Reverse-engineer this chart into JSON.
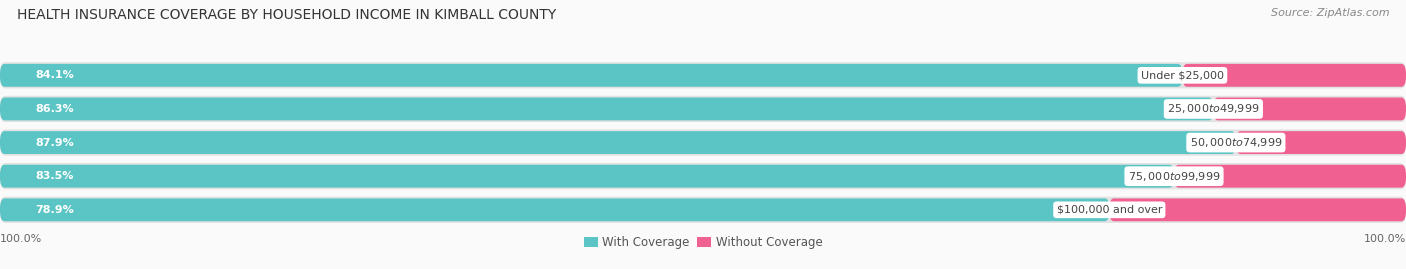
{
  "title": "HEALTH INSURANCE COVERAGE BY HOUSEHOLD INCOME IN KIMBALL COUNTY",
  "source": "Source: ZipAtlas.com",
  "categories": [
    "Under $25,000",
    "$25,000 to $49,999",
    "$50,000 to $74,999",
    "$75,000 to $99,999",
    "$100,000 and over"
  ],
  "with_coverage": [
    84.1,
    86.3,
    87.9,
    83.5,
    78.9
  ],
  "without_coverage": [
    15.9,
    13.7,
    12.1,
    16.5,
    21.1
  ],
  "color_coverage": "#5BC4C4",
  "color_no_coverage": "#F06090",
  "color_track": "#E2E2E2",
  "left_label": "100.0%",
  "right_label": "100.0%",
  "legend_coverage": "With Coverage",
  "legend_no_coverage": "Without Coverage",
  "title_fontsize": 10,
  "source_fontsize": 8,
  "bar_label_fontsize": 8,
  "category_fontsize": 8,
  "axis_label_fontsize": 8,
  "background_color": "#FAFAFA"
}
